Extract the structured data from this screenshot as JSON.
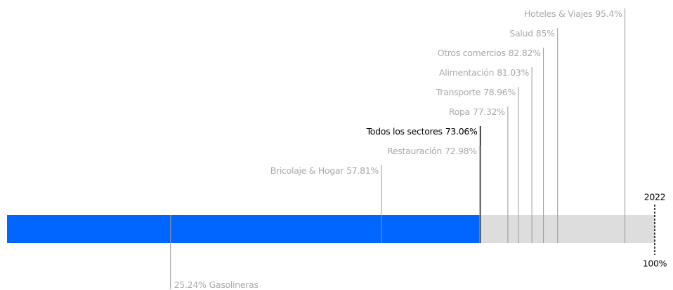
{
  "chart_data": {
    "type": "bar",
    "orientation": "horizontal",
    "xlim": [
      0,
      100
    ],
    "xticks": [
      {
        "value": 100,
        "label": "100%"
      }
    ],
    "year": "2022",
    "highlight": {
      "name": "Todos los sectores",
      "value": 73.06,
      "value_label": "73.06%",
      "color": "#0066ff"
    },
    "categories": [
      "Hoteles & Viajes",
      "Salud",
      "Otros comercios",
      "Alimentación",
      "Transporte",
      "Ropa",
      "Restauración",
      "Bricolaje & Hogar",
      "Gasolineras"
    ],
    "values": [
      95.4,
      85,
      82.82,
      81.03,
      78.96,
      77.32,
      72.98,
      57.81,
      25.24
    ],
    "value_labels": [
      "95.4%",
      "85%",
      "82.82%",
      "81.03%",
      "78.96%",
      "77.32%",
      "72.98%",
      "57.81%",
      "25.24%"
    ],
    "color": "#aaaaaa",
    "track_color": "#dddddd"
  }
}
